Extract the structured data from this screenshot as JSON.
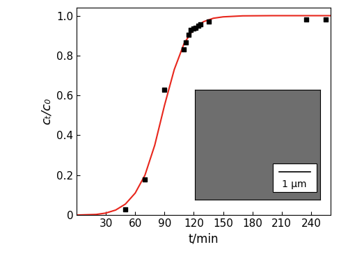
{
  "chart_data": {
    "type": "scatter",
    "x_label": "t/min",
    "y_label": "cₜ/c₀",
    "annotations": [
      "1 μm"
    ],
    "series": [
      {
        "type": "scatter",
        "marker": "square",
        "color": "#000000",
        "x": [
          50,
          70,
          90,
          110,
          112,
          115,
          117,
          120,
          122,
          125,
          127,
          135,
          235,
          255
        ],
        "values": [
          0.03,
          0.18,
          0.63,
          0.83,
          0.865,
          0.905,
          0.93,
          0.935,
          0.94,
          0.95,
          0.955,
          0.97,
          0.98,
          0.98
        ]
      },
      {
        "type": "line",
        "line_style": "solid",
        "color": "#e8261c",
        "x": [
          0,
          20,
          30,
          40,
          50,
          60,
          70,
          80,
          90,
          100,
          110,
          120,
          130,
          140,
          150,
          170,
          200,
          260
        ],
        "values": [
          0.0,
          0.003,
          0.01,
          0.025,
          0.055,
          0.11,
          0.2,
          0.35,
          0.55,
          0.73,
          0.86,
          0.935,
          0.97,
          0.987,
          0.994,
          0.999,
          1.0,
          1.0
        ]
      }
    ],
    "xlim": [
      0,
      260
    ],
    "ylim": [
      0,
      1.04
    ],
    "xticks": [
      30,
      60,
      90,
      120,
      150,
      180,
      210,
      240
    ],
    "yticks": [
      0,
      0.2,
      0.4,
      0.6,
      0.8,
      {
        "value": 1.0,
        "label": "1.0"
      }
    ],
    "grid": false
  }
}
